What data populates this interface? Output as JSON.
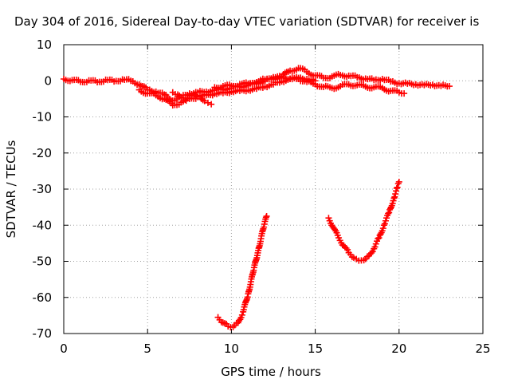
{
  "chart_data": {
    "type": "scatter",
    "title": "Day 304 of 2016, Sidereal Day-to-day VTEC variation (SDTVAR) for receiver is",
    "xlabel": "GPS time / hours",
    "ylabel": "SDTVAR / TECUs",
    "xlim": [
      0,
      25
    ],
    "ylim": [
      -70,
      10
    ],
    "xticks": [
      0,
      5,
      10,
      15,
      20,
      25
    ],
    "yticks": [
      10,
      0,
      -10,
      -20,
      -30,
      -40,
      -50,
      -60,
      -70
    ],
    "grid": true,
    "legend": "none",
    "marker": "+",
    "color": "#ff0000",
    "series": [
      {
        "values": [
          [
            0.0,
            0.5
          ],
          [
            0.5,
            0.2
          ],
          [
            1.0,
            -0.3
          ],
          [
            1.5,
            0.1
          ],
          [
            2.0,
            -0.4
          ],
          [
            2.5,
            0.3
          ],
          [
            3.0,
            -0.2
          ],
          [
            3.5,
            0.4
          ],
          [
            4.0,
            0.0
          ],
          [
            4.5,
            -1.0
          ],
          [
            5.0,
            -2.5
          ],
          [
            5.5,
            -3.0
          ],
          [
            6.0,
            -3.8
          ],
          [
            6.5,
            -5.5
          ],
          [
            7.0,
            -4.5
          ],
          [
            7.5,
            -3.5
          ],
          [
            8.0,
            -3.2
          ],
          [
            8.5,
            -3.0
          ],
          [
            9.0,
            -2.6
          ],
          [
            9.5,
            -2.3
          ],
          [
            10.0,
            -2.0
          ],
          [
            10.5,
            -1.6
          ],
          [
            11.0,
            -1.2
          ],
          [
            11.5,
            -0.6
          ],
          [
            12.0,
            0.0
          ],
          [
            12.5,
            0.6
          ],
          [
            13.0,
            1.2
          ],
          [
            13.5,
            2.8
          ],
          [
            14.0,
            3.5
          ],
          [
            14.5,
            2.5
          ],
          [
            15.0,
            1.5
          ],
          [
            15.5,
            0.8
          ],
          [
            16.0,
            1.2
          ],
          [
            16.5,
            1.6
          ],
          [
            17.0,
            1.4
          ],
          [
            17.5,
            1.0
          ],
          [
            18.0,
            0.6
          ],
          [
            18.5,
            0.2
          ],
          [
            19.0,
            0.5
          ],
          [
            19.5,
            -0.2
          ],
          [
            20.0,
            -0.7
          ],
          [
            20.5,
            -0.8
          ],
          [
            21.0,
            -1.0
          ],
          [
            21.5,
            -1.2
          ],
          [
            22.0,
            -1.1
          ],
          [
            22.5,
            -1.4
          ],
          [
            23.0,
            -1.5
          ]
        ]
      },
      {
        "values": [
          [
            4.5,
            -2.5
          ],
          [
            5.0,
            -3.5
          ],
          [
            5.5,
            -4.0
          ],
          [
            6.0,
            -5.0
          ],
          [
            6.5,
            -6.8
          ],
          [
            7.0,
            -6.0
          ],
          [
            7.5,
            -5.0
          ],
          [
            8.0,
            -4.5
          ],
          [
            8.5,
            -4.0
          ],
          [
            9.0,
            -3.6
          ],
          [
            9.5,
            -3.4
          ],
          [
            10.0,
            -3.0
          ],
          [
            10.5,
            -2.8
          ],
          [
            11.0,
            -2.6
          ],
          [
            11.5,
            -2.2
          ],
          [
            12.0,
            -1.6
          ],
          [
            12.5,
            -1.0
          ],
          [
            13.0,
            -0.2
          ],
          [
            13.5,
            0.6
          ],
          [
            14.0,
            0.5
          ],
          [
            14.5,
            -0.3
          ],
          [
            15.0,
            -1.0
          ],
          [
            15.5,
            -1.7
          ],
          [
            16.0,
            -2.0
          ],
          [
            16.5,
            -1.5
          ],
          [
            17.0,
            -1.0
          ],
          [
            17.5,
            -1.2
          ],
          [
            18.0,
            -1.6
          ],
          [
            18.5,
            -1.8
          ],
          [
            19.0,
            -2.0
          ],
          [
            19.5,
            -2.8
          ],
          [
            20.0,
            -3.2
          ],
          [
            20.3,
            -3.5
          ]
        ]
      },
      {
        "values": [
          [
            6.5,
            -3.2
          ],
          [
            6.8,
            -3.8
          ],
          [
            7.0,
            -4.8
          ],
          [
            7.3,
            -5.5
          ],
          [
            7.5,
            -4.2
          ],
          [
            7.8,
            -3.8
          ],
          [
            8.0,
            -4.5
          ],
          [
            8.2,
            -5.0
          ],
          [
            8.4,
            -5.6
          ],
          [
            8.6,
            -6.1
          ],
          [
            8.8,
            -6.5
          ]
        ]
      },
      {
        "values": [
          [
            9.0,
            -1.8
          ],
          [
            9.5,
            -1.5
          ],
          [
            10.0,
            -1.4
          ],
          [
            10.5,
            -1.0
          ],
          [
            11.0,
            -0.8
          ],
          [
            11.5,
            -0.4
          ],
          [
            12.0,
            0.4
          ],
          [
            12.5,
            1.0
          ],
          [
            13.0,
            1.0
          ],
          [
            13.5,
            0.5
          ],
          [
            14.0,
            0.8
          ],
          [
            14.5,
            0.5
          ],
          [
            15.0,
            0.0
          ]
        ]
      },
      {
        "values": [
          [
            9.2,
            -65.5
          ],
          [
            9.5,
            -67.0
          ],
          [
            9.8,
            -68.0
          ],
          [
            10.1,
            -68.2
          ],
          [
            10.4,
            -67.0
          ],
          [
            10.7,
            -64.0
          ],
          [
            11.0,
            -59.0
          ],
          [
            11.3,
            -53.0
          ],
          [
            11.6,
            -47.0
          ],
          [
            11.9,
            -41.0
          ],
          [
            12.1,
            -37.5
          ]
        ]
      },
      {
        "values": [
          [
            15.8,
            -38.0
          ],
          [
            16.1,
            -40.8
          ],
          [
            16.4,
            -43.5
          ],
          [
            16.7,
            -45.7
          ],
          [
            17.0,
            -47.6
          ],
          [
            17.3,
            -49.0
          ],
          [
            17.6,
            -49.8
          ],
          [
            17.9,
            -49.7
          ],
          [
            18.2,
            -48.5
          ],
          [
            18.5,
            -46.5
          ],
          [
            18.8,
            -43.5
          ],
          [
            19.1,
            -40.0
          ],
          [
            19.4,
            -36.5
          ],
          [
            19.7,
            -32.5
          ],
          [
            19.9,
            -29.5
          ],
          [
            20.0,
            -28.0
          ]
        ]
      }
    ]
  }
}
